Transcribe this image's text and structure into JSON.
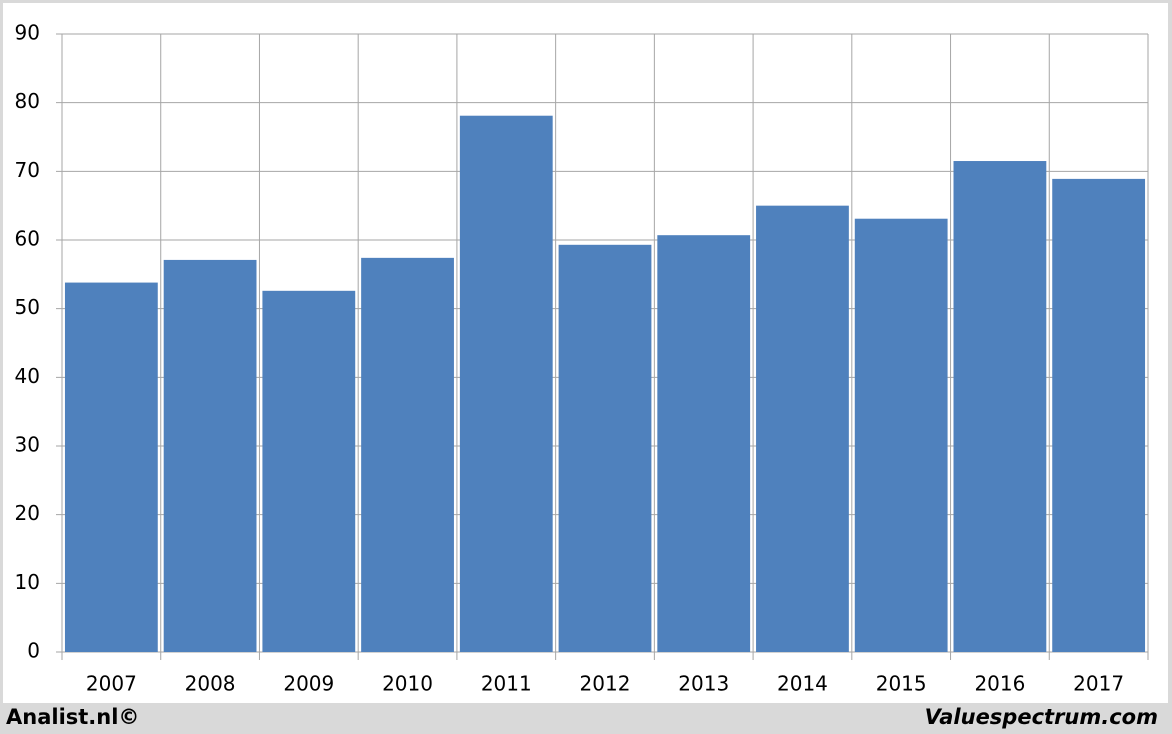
{
  "chart_data": {
    "type": "bar",
    "categories": [
      "2007",
      "2008",
      "2009",
      "2010",
      "2011",
      "2012",
      "2013",
      "2014",
      "2015",
      "2016",
      "2017"
    ],
    "values": [
      53.8,
      57.1,
      52.6,
      57.4,
      78.1,
      59.3,
      60.7,
      65.0,
      63.1,
      71.5,
      68.9
    ],
    "color": "#4f81bd",
    "ylim": [
      0,
      90
    ],
    "yticks": [
      0,
      10,
      20,
      30,
      40,
      50,
      60,
      70,
      80,
      90
    ],
    "grid": true,
    "source_left": "Analist.nl©",
    "source_right": "Valuespectrum.com"
  }
}
